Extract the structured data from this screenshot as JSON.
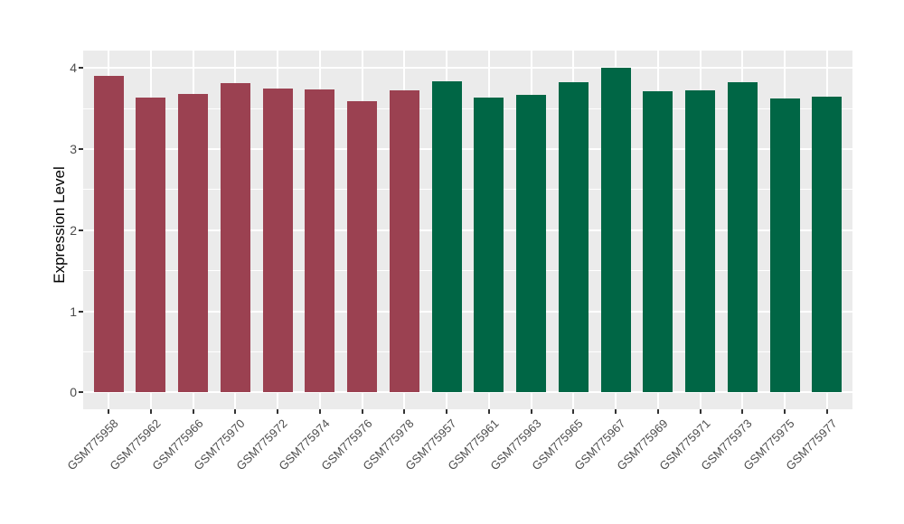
{
  "chart_data": {
    "type": "bar",
    "title": "",
    "xlabel": "",
    "ylabel": "Expression Level",
    "ylim": [
      0,
      4.2
    ],
    "yticks": [
      0,
      1,
      2,
      3,
      4
    ],
    "yminor": [
      0.5,
      1.5,
      2.5,
      3.5
    ],
    "grid": "white major and minor horizontal lines plus vertical category lines on gray panel",
    "legend_position": "none",
    "categories": [
      "GSM775958",
      "GSM775962",
      "GSM775966",
      "GSM775970",
      "GSM775972",
      "GSM775974",
      "GSM775976",
      "GSM775978",
      "GSM775957",
      "GSM775961",
      "GSM775963",
      "GSM775965",
      "GSM775967",
      "GSM775969",
      "GSM775971",
      "GSM775973",
      "GSM775975",
      "GSM775977"
    ],
    "values": [
      3.9,
      3.64,
      3.68,
      3.81,
      3.75,
      3.74,
      3.59,
      3.72,
      3.84,
      3.64,
      3.67,
      3.83,
      4.0,
      3.71,
      3.73,
      3.83,
      3.62,
      3.65
    ],
    "bar_colors": [
      "#9B4151",
      "#9B4151",
      "#9B4151",
      "#9B4151",
      "#9B4151",
      "#9B4151",
      "#9B4151",
      "#9B4151",
      "#006645",
      "#006645",
      "#006645",
      "#006645",
      "#006645",
      "#006645",
      "#006645",
      "#006645",
      "#006645",
      "#006645"
    ]
  },
  "style": {
    "panel_bg": "#EBEBEB",
    "grid_color": "#FFFFFF",
    "tick_mark_color": "#333333",
    "tick_label_color": "#4D4D4D",
    "axis_title_color": "#000000",
    "left_group_color": "#9B4151",
    "right_group_color": "#006645"
  }
}
